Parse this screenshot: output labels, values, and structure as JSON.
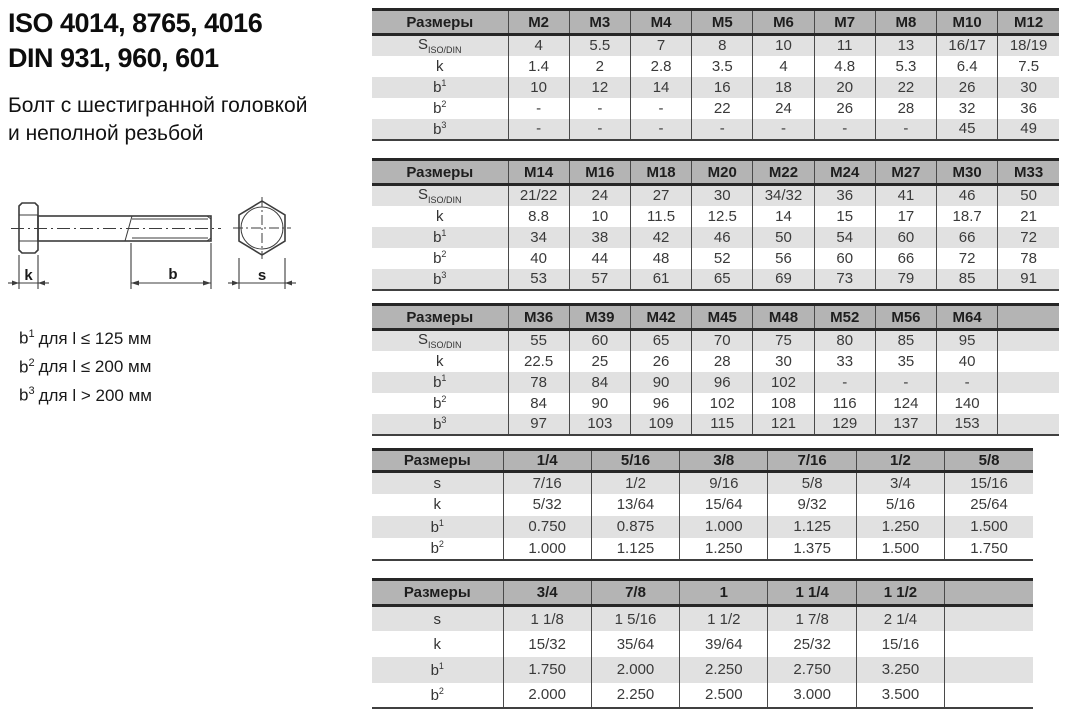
{
  "header": {
    "title_line1": "ISO 4014, 8765, 4016",
    "title_line2": "DIN 931, 960, 601",
    "subtitle_line1": "Болт с шестигранной головкой",
    "subtitle_line2": "и неполной резьбой"
  },
  "diagram": {
    "labels": {
      "k": "k",
      "b": "b",
      "s": "s"
    }
  },
  "notes": [
    {
      "base": "b",
      "sup": "1",
      "rest": "для l ≤ 125 мм"
    },
    {
      "base": "b",
      "sup": "2",
      "rest": "для l ≤ 200 мм"
    },
    {
      "base": "b",
      "sup": "3",
      "rest": "для l > 200 мм"
    }
  ],
  "colors": {
    "header_bg": "#b4b4b4",
    "alt_row_bg": "#e1e1e1",
    "border_dark": "#262626"
  },
  "tables": [
    {
      "name": "metric-table-m2-m12",
      "header": [
        "Размеры",
        "M2",
        "M3",
        "M4",
        "M5",
        "M6",
        "M7",
        "M8",
        "M10",
        "M12"
      ],
      "rows": [
        {
          "label": "S",
          "sub": "ISO/DIN",
          "cells": [
            "4",
            "5.5",
            "7",
            "8",
            "10",
            "11",
            "13",
            "16/17",
            "18/19"
          ]
        },
        {
          "label": "k",
          "cells": [
            "1.4",
            "2",
            "2.8",
            "3.5",
            "4",
            "4.8",
            "5.3",
            "6.4",
            "7.5"
          ]
        },
        {
          "label": "b",
          "sup": "1",
          "cells": [
            "10",
            "12",
            "14",
            "16",
            "18",
            "20",
            "22",
            "26",
            "30"
          ]
        },
        {
          "label": "b",
          "sup": "2",
          "cells": [
            "-",
            "-",
            "-",
            "22",
            "24",
            "26",
            "28",
            "32",
            "36"
          ]
        },
        {
          "label": "b",
          "sup": "3",
          "cells": [
            "-",
            "-",
            "-",
            "-",
            "-",
            "-",
            "-",
            "45",
            "49"
          ]
        }
      ]
    },
    {
      "name": "metric-table-m14-m33",
      "header": [
        "Размеры",
        "M14",
        "M16",
        "M18",
        "M20",
        "M22",
        "M24",
        "M27",
        "M30",
        "M33"
      ],
      "rows": [
        {
          "label": "S",
          "sub": "ISO/DIN",
          "cells": [
            "21/22",
            "24",
            "27",
            "30",
            "34/32",
            "36",
            "41",
            "46",
            "50"
          ]
        },
        {
          "label": "k",
          "cells": [
            "8.8",
            "10",
            "11.5",
            "12.5",
            "14",
            "15",
            "17",
            "18.7",
            "21"
          ]
        },
        {
          "label": "b",
          "sup": "1",
          "cells": [
            "34",
            "38",
            "42",
            "46",
            "50",
            "54",
            "60",
            "66",
            "72"
          ]
        },
        {
          "label": "b",
          "sup": "2",
          "cells": [
            "40",
            "44",
            "48",
            "52",
            "56",
            "60",
            "66",
            "72",
            "78"
          ]
        },
        {
          "label": "b",
          "sup": "3",
          "cells": [
            "53",
            "57",
            "61",
            "65",
            "69",
            "73",
            "79",
            "85",
            "91"
          ]
        }
      ]
    },
    {
      "name": "metric-table-m36-m64",
      "header": [
        "Размеры",
        "M36",
        "M39",
        "M42",
        "M45",
        "M48",
        "M52",
        "M56",
        "M64",
        ""
      ],
      "rows": [
        {
          "label": "S",
          "sub": "ISO/DIN",
          "cells": [
            "55",
            "60",
            "65",
            "70",
            "75",
            "80",
            "85",
            "95",
            ""
          ]
        },
        {
          "label": "k",
          "cells": [
            "22.5",
            "25",
            "26",
            "28",
            "30",
            "33",
            "35",
            "40",
            ""
          ]
        },
        {
          "label": "b",
          "sup": "1",
          "cells": [
            "78",
            "84",
            "90",
            "96",
            "102",
            "-",
            "-",
            "-",
            ""
          ]
        },
        {
          "label": "b",
          "sup": "2",
          "cells": [
            "84",
            "90",
            "96",
            "102",
            "108",
            "116",
            "124",
            "140",
            ""
          ]
        },
        {
          "label": "b",
          "sup": "3",
          "cells": [
            "97",
            "103",
            "109",
            "115",
            "121",
            "129",
            "137",
            "153",
            ""
          ]
        }
      ]
    },
    {
      "name": "imperial-table-quarter-to-five-eighths",
      "header": [
        "Размеры",
        "1/4",
        "5/16",
        "3/8",
        "7/16",
        "1/2",
        "5/8"
      ],
      "rows": [
        {
          "label": "s",
          "cells": [
            "7/16",
            "1/2",
            "9/16",
            "5/8",
            "3/4",
            "15/16"
          ]
        },
        {
          "label": "k",
          "cells": [
            "5/32",
            "13/64",
            "15/64",
            "9/32",
            "5/16",
            "25/64"
          ]
        },
        {
          "label": "b",
          "sup": "1",
          "cells": [
            "0.750",
            "0.875",
            "1.000",
            "1.125",
            "1.250",
            "1.500"
          ]
        },
        {
          "label": "b",
          "sup": "2",
          "cells": [
            "1.000",
            "1.125",
            "1.250",
            "1.375",
            "1.500",
            "1.750"
          ]
        }
      ]
    },
    {
      "name": "imperial-table-three-quarter-to-one-and-half",
      "header": [
        "Размеры",
        "3/4",
        "7/8",
        "1",
        "1 1/4",
        "1 1/2",
        ""
      ],
      "rows": [
        {
          "label": "s",
          "cells": [
            "1 1/8",
            "1 5/16",
            "1 1/2",
            "1 7/8",
            "2 1/4",
            ""
          ]
        },
        {
          "label": "k",
          "cells": [
            "15/32",
            "35/64",
            "39/64",
            "25/32",
            "15/16",
            ""
          ]
        },
        {
          "label": "b",
          "sup": "1",
          "cells": [
            "1.750",
            "2.000",
            "2.250",
            "2.750",
            "3.250",
            ""
          ]
        },
        {
          "label": "b",
          "sup": "2",
          "cells": [
            "2.000",
            "2.250",
            "2.500",
            "3.000",
            "3.500",
            ""
          ]
        }
      ]
    }
  ]
}
